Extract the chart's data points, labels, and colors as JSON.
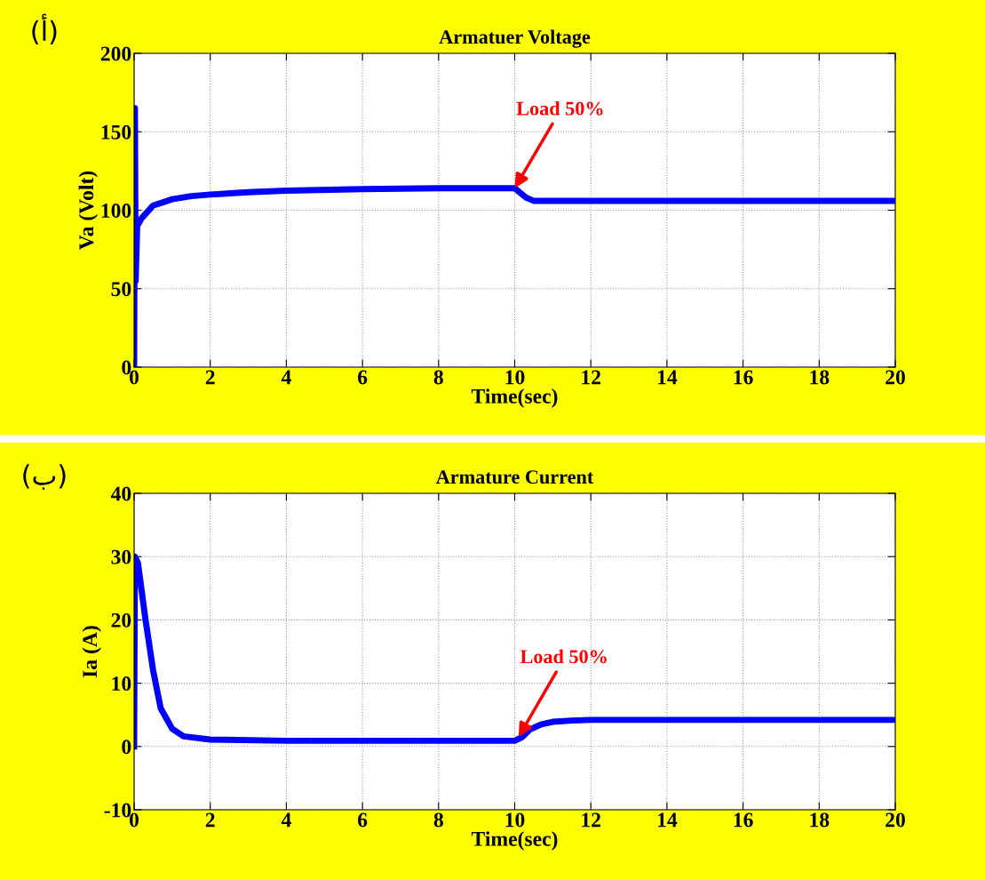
{
  "chart_data": [
    {
      "type": "line",
      "title": "Armatuer Voltage",
      "xlabel": "Time(sec)",
      "ylabel": "Va (Volt)",
      "xlim": [
        0,
        20
      ],
      "xticks": [
        0,
        2,
        4,
        6,
        8,
        10,
        12,
        14,
        16,
        18,
        20
      ],
      "ylim": [
        0,
        200
      ],
      "yticks": [
        0,
        50,
        100,
        150,
        200
      ],
      "grid": true,
      "series": [
        {
          "color": "#0000ff",
          "x": [
            0,
            0.02,
            0.04,
            0.08,
            0.2,
            0.5,
            1,
            1.5,
            2,
            3,
            4,
            6,
            8,
            10,
            10.3,
            10.5,
            12,
            14,
            16,
            18,
            20
          ],
          "values": [
            0,
            165,
            55,
            90,
            95,
            103,
            107,
            109,
            110,
            111.5,
            112.5,
            113.5,
            114,
            114,
            108,
            106,
            106,
            106,
            106,
            106,
            106
          ]
        }
      ],
      "annotations": [
        "(أ)",
        {
          "text": "Load 50%",
          "x": 10,
          "y": 114
        }
      ]
    },
    {
      "type": "line",
      "title": "Armature Current",
      "xlabel": "Time(sec)",
      "ylabel": "Ia (A)",
      "xlim": [
        0,
        20
      ],
      "xticks": [
        0,
        2,
        4,
        6,
        8,
        10,
        12,
        14,
        16,
        18,
        20
      ],
      "ylim": [
        -10,
        40
      ],
      "yticks": [
        -10,
        0,
        10,
        20,
        30,
        40
      ],
      "grid": true,
      "series": [
        {
          "color": "#0000ff",
          "x": [
            0,
            0.02,
            0.1,
            0.3,
            0.5,
            0.7,
            1,
            1.3,
            2,
            4,
            10,
            10.2,
            10.4,
            10.7,
            11,
            11.5,
            12,
            14,
            16,
            18,
            20
          ],
          "values": [
            0,
            30,
            29,
            20,
            12,
            6,
            2.8,
            1.6,
            1.1,
            0.9,
            0.9,
            1.5,
            2.7,
            3.5,
            3.9,
            4.1,
            4.2,
            4.2,
            4.2,
            4.2,
            4.2
          ]
        }
      ],
      "annotations": [
        "(ب)",
        {
          "text": "Load 50%",
          "x": 10.1,
          "y": 1.5
        }
      ]
    }
  ]
}
